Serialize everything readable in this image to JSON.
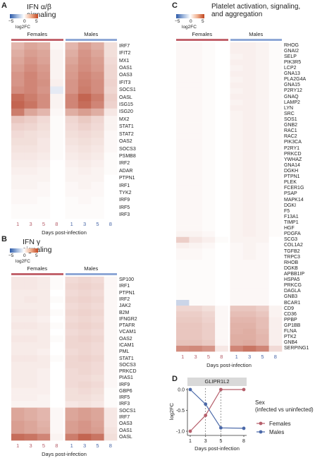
{
  "colors": {
    "female": "#b65f6b",
    "male": "#4a68a8",
    "female_bar": "#c2646d",
    "male_bar": "#8fa8d6"
  },
  "chart_data": [
    {
      "panel": "A",
      "type": "heatmap",
      "title": "IFN α/β signaling",
      "colorbar": {
        "label": "log2FC",
        "ticks": [
          "−5",
          "0",
          "5"
        ],
        "range": [
          -5,
          5
        ]
      },
      "groups": [
        "Females",
        "Males"
      ],
      "xlabel": "Days post-infection",
      "days": [
        "1",
        "3",
        "5",
        "8",
        "1",
        "3",
        "5",
        "8"
      ],
      "genes": [
        "IRF7",
        "IFIT2",
        "MX1",
        "OAS1",
        "OAS3",
        "IFIT3",
        "SOCS1",
        "OASL",
        "ISG15",
        "ISG20",
        "MX2",
        "STAT1",
        "STAT2",
        "OAS2",
        "SOCS3",
        "PSMB8",
        "IRF2",
        "ADAR",
        "PTPN1",
        "IRF1",
        "TYK2",
        "IRF9",
        "IRF5",
        "IRF3"
      ],
      "values": [
        [
          1.8,
          2.2,
          2.0,
          0.2,
          1.8,
          2.4,
          2.0,
          0.8
        ],
        [
          2.0,
          2.4,
          2.2,
          0.3,
          2.0,
          2.6,
          2.2,
          0.8
        ],
        [
          2.2,
          2.6,
          2.3,
          0.3,
          2.2,
          2.7,
          2.4,
          0.9
        ],
        [
          2.4,
          2.8,
          2.5,
          0.3,
          2.4,
          2.8,
          2.5,
          1.0
        ],
        [
          2.6,
          3.0,
          2.6,
          0.3,
          2.5,
          3.0,
          2.7,
          1.0
        ],
        [
          2.6,
          3.0,
          2.7,
          0.4,
          2.6,
          3.1,
          2.8,
          1.1
        ],
        [
          2.8,
          3.0,
          2.6,
          -0.6,
          2.6,
          3.2,
          2.8,
          1.0
        ],
        [
          3.6,
          3.2,
          2.8,
          0.3,
          3.0,
          3.8,
          3.2,
          1.2
        ],
        [
          3.8,
          3.4,
          2.8,
          0.3,
          3.0,
          3.6,
          3.0,
          1.1
        ],
        [
          3.2,
          2.2,
          1.8,
          0.2,
          2.0,
          2.4,
          2.0,
          0.6
        ],
        [
          1.4,
          1.2,
          0.9,
          0.1,
          1.0,
          1.3,
          1.0,
          0.3
        ],
        [
          1.1,
          1.0,
          0.8,
          0.1,
          0.9,
          1.1,
          0.9,
          0.3
        ],
        [
          0.9,
          0.8,
          0.7,
          0.1,
          0.8,
          0.9,
          0.8,
          0.2
        ],
        [
          0.8,
          0.8,
          0.6,
          0.1,
          0.7,
          0.8,
          0.7,
          0.2
        ],
        [
          0.7,
          0.7,
          0.6,
          0.1,
          0.6,
          0.7,
          0.6,
          0.2
        ],
        [
          0.6,
          0.6,
          0.5,
          0.1,
          0.5,
          0.6,
          0.5,
          0.1
        ],
        [
          0.5,
          0.5,
          0.4,
          0.0,
          0.4,
          0.5,
          0.4,
          0.1
        ],
        [
          0.4,
          0.4,
          0.3,
          0.0,
          0.3,
          0.4,
          0.3,
          0.1
        ],
        [
          0.3,
          0.3,
          0.3,
          0.0,
          0.3,
          0.3,
          0.3,
          0.0
        ],
        [
          0.3,
          0.3,
          0.2,
          0.0,
          0.2,
          0.3,
          0.2,
          0.0
        ],
        [
          0.2,
          0.2,
          0.2,
          0.0,
          0.2,
          0.2,
          0.2,
          0.0
        ],
        [
          0.2,
          0.2,
          0.1,
          0.0,
          0.1,
          0.2,
          0.1,
          0.0
        ],
        [
          0.1,
          0.1,
          0.1,
          0.0,
          0.1,
          0.1,
          0.1,
          0.0
        ],
        [
          0.1,
          0.1,
          0.1,
          0.0,
          0.1,
          0.1,
          0.1,
          0.0
        ]
      ]
    },
    {
      "panel": "B",
      "type": "heatmap",
      "title": "IFN γ signaling",
      "colorbar": {
        "label": "log2FC",
        "ticks": [
          "−5",
          "0",
          "5"
        ],
        "range": [
          -5,
          5
        ]
      },
      "groups": [
        "Females",
        "Males"
      ],
      "xlabel": "Days post-infection",
      "days": [
        "1",
        "3",
        "5",
        "8",
        "1",
        "3",
        "5",
        "8"
      ],
      "genes": [
        "SP100",
        "IRF1",
        "PTPN1",
        "IRF2",
        "JAK2",
        "B2M",
        "IFNGR2",
        "PTAFR",
        "VCAM1",
        "OAS2",
        "ICAM1",
        "PML",
        "STAT1",
        "SOCS3",
        "PRKCD",
        "PIAS1",
        "IRF9",
        "GBP6",
        "IRF5",
        "IRF3",
        "SOCS1",
        "IRF7",
        "OAS3",
        "OAS1",
        "OASL"
      ],
      "values": [
        [
          0.6,
          0.6,
          0.5,
          0.1,
          0.9,
          1.0,
          0.9,
          0.2
        ],
        [
          0.6,
          0.6,
          0.5,
          0.1,
          1.0,
          1.1,
          1.0,
          0.2
        ],
        [
          0.5,
          0.5,
          0.5,
          0.0,
          0.9,
          1.0,
          0.9,
          0.2
        ],
        [
          0.5,
          0.6,
          0.5,
          0.1,
          1.0,
          1.1,
          1.0,
          0.2
        ],
        [
          0.5,
          0.5,
          0.5,
          0.0,
          0.9,
          1.0,
          0.9,
          0.2
        ],
        [
          0.6,
          0.6,
          0.5,
          0.1,
          1.0,
          1.1,
          1.0,
          0.2
        ],
        [
          0.5,
          0.5,
          0.4,
          0.0,
          0.9,
          1.0,
          0.9,
          0.2
        ],
        [
          0.6,
          0.6,
          0.5,
          0.1,
          1.0,
          1.1,
          1.0,
          0.2
        ],
        [
          0.5,
          0.5,
          0.5,
          0.0,
          0.9,
          1.0,
          0.9,
          0.2
        ],
        [
          0.6,
          0.6,
          0.5,
          0.1,
          1.0,
          1.1,
          1.0,
          0.2
        ],
        [
          0.5,
          0.5,
          0.5,
          0.0,
          1.0,
          1.0,
          0.9,
          0.2
        ],
        [
          0.5,
          0.5,
          0.4,
          0.0,
          0.9,
          1.0,
          0.9,
          0.2
        ],
        [
          0.6,
          0.6,
          0.5,
          0.1,
          1.0,
          1.1,
          1.0,
          0.2
        ],
        [
          0.5,
          0.5,
          0.5,
          0.0,
          1.0,
          1.0,
          0.9,
          0.2
        ],
        [
          0.5,
          0.5,
          0.4,
          0.0,
          0.9,
          1.0,
          0.9,
          0.2
        ],
        [
          0.5,
          0.5,
          0.4,
          0.0,
          0.9,
          0.9,
          0.8,
          0.2
        ],
        [
          0.5,
          0.5,
          0.4,
          0.0,
          0.9,
          1.0,
          0.9,
          0.2
        ],
        [
          0.4,
          0.4,
          0.4,
          0.0,
          0.8,
          0.9,
          0.8,
          0.1
        ],
        [
          0.4,
          0.4,
          0.3,
          0.0,
          0.8,
          0.8,
          0.7,
          0.1
        ],
        [
          0.3,
          0.3,
          0.3,
          0.0,
          0.6,
          0.7,
          0.6,
          0.1
        ],
        [
          2.2,
          2.0,
          1.8,
          0.2,
          2.2,
          2.4,
          2.2,
          0.6
        ],
        [
          2.2,
          2.0,
          1.8,
          0.2,
          2.2,
          2.4,
          2.2,
          0.6
        ],
        [
          2.4,
          2.2,
          1.9,
          0.2,
          2.4,
          2.6,
          2.3,
          0.6
        ],
        [
          2.4,
          2.2,
          2.0,
          0.2,
          2.4,
          2.6,
          2.4,
          0.7
        ],
        [
          3.6,
          3.4,
          3.0,
          0.3,
          3.2,
          3.8,
          3.4,
          0.8
        ]
      ]
    },
    {
      "panel": "C",
      "type": "heatmap",
      "title": "Platelet activation, signaling,\nand aggregation",
      "colorbar": {
        "label": "log2FC",
        "ticks": [
          "−5",
          "0",
          "5"
        ],
        "range": [
          -5,
          5
        ]
      },
      "groups": [
        "Females",
        "Males"
      ],
      "xlabel": "Days post-infection",
      "days": [
        "1",
        "3",
        "5",
        "8",
        "1",
        "3",
        "5",
        "8"
      ],
      "genes": [
        "RHOG",
        "GNAI2",
        "SELP",
        "PIK3R5",
        "LCP2",
        "GNA13",
        "PLA2G4A",
        "GNA15",
        "P2RY12",
        "GNAQ",
        "LAMP2",
        "LYN",
        "SRC",
        "SOS1",
        "GNB2",
        "RAC1",
        "RAC2",
        "PIK3CA",
        "P2RY1",
        "PRKCD",
        "YWHAZ",
        "GNA14",
        "DGKH",
        "PTPN1",
        "PLEK",
        "FCER1G",
        "PSAP",
        "MAPK14",
        "DGKI",
        "F5",
        "F13A1",
        "TIMP1",
        "HGF",
        "PDGFA",
        "SCG3",
        "COL1A2",
        "TGFB2",
        "TRPC3",
        "RHOB",
        "DGKB",
        "APBB1IP",
        "HSPA5",
        "PRKCG",
        "DAGLA",
        "GNB3",
        "BCAR1",
        "CD9",
        "CD36",
        "PPBP",
        "GP1BB",
        "FLNA",
        "PTK2",
        "GNB4",
        "SERPING1"
      ],
      "values": [
        [
          0.2,
          0.2,
          0.1,
          0.0,
          0.4,
          0.4,
          0.3,
          0.1
        ],
        [
          0.2,
          0.2,
          0.1,
          0.0,
          0.4,
          0.4,
          0.3,
          0.1
        ],
        [
          0.2,
          0.2,
          0.1,
          0.0,
          0.3,
          0.4,
          0.3,
          0.1
        ],
        [
          0.2,
          0.2,
          0.1,
          0.0,
          0.4,
          0.4,
          0.3,
          0.1
        ],
        [
          0.2,
          0.2,
          0.1,
          0.0,
          0.3,
          0.4,
          0.3,
          0.1
        ],
        [
          0.2,
          0.2,
          0.1,
          0.0,
          0.4,
          0.4,
          0.3,
          0.1
        ],
        [
          0.2,
          0.2,
          0.1,
          0.0,
          0.3,
          0.4,
          0.3,
          0.1
        ],
        [
          0.2,
          0.2,
          0.1,
          0.0,
          0.4,
          0.4,
          0.3,
          0.1
        ],
        [
          0.2,
          0.2,
          0.1,
          0.0,
          0.3,
          0.4,
          0.3,
          0.1
        ],
        [
          0.2,
          0.2,
          0.1,
          0.0,
          0.4,
          0.4,
          0.3,
          0.1
        ],
        [
          0.2,
          0.2,
          0.1,
          0.0,
          0.3,
          0.4,
          0.3,
          0.1
        ],
        [
          0.2,
          0.2,
          0.1,
          0.0,
          0.4,
          0.4,
          0.3,
          0.1
        ],
        [
          0.2,
          0.2,
          0.1,
          0.0,
          0.3,
          0.4,
          0.3,
          0.1
        ],
        [
          0.2,
          0.2,
          0.1,
          0.0,
          0.3,
          0.4,
          0.3,
          0.1
        ],
        [
          0.2,
          0.2,
          0.1,
          0.0,
          0.3,
          0.4,
          0.3,
          0.1
        ],
        [
          0.2,
          0.2,
          0.1,
          0.0,
          0.3,
          0.4,
          0.3,
          0.1
        ],
        [
          0.2,
          0.2,
          0.1,
          0.0,
          0.3,
          0.4,
          0.3,
          0.1
        ],
        [
          0.2,
          0.2,
          0.1,
          0.0,
          0.3,
          0.4,
          0.3,
          0.1
        ],
        [
          0.2,
          0.2,
          0.1,
          0.0,
          0.3,
          0.4,
          0.3,
          0.1
        ],
        [
          0.2,
          0.2,
          0.1,
          0.0,
          0.3,
          0.4,
          0.3,
          0.1
        ],
        [
          0.2,
          0.2,
          0.1,
          0.0,
          0.3,
          0.4,
          0.3,
          0.1
        ],
        [
          0.2,
          0.2,
          0.1,
          0.0,
          0.3,
          0.4,
          0.3,
          0.1
        ],
        [
          0.2,
          0.2,
          0.1,
          0.0,
          0.3,
          0.4,
          0.3,
          0.1
        ],
        [
          0.2,
          0.2,
          0.1,
          0.0,
          0.3,
          0.4,
          0.3,
          0.1
        ],
        [
          0.2,
          0.2,
          0.1,
          0.0,
          0.3,
          0.4,
          0.3,
          0.1
        ],
        [
          0.2,
          0.2,
          0.1,
          0.0,
          0.3,
          0.4,
          0.3,
          0.1
        ],
        [
          0.2,
          0.2,
          0.1,
          0.0,
          0.3,
          0.4,
          0.3,
          0.1
        ],
        [
          0.2,
          0.2,
          0.1,
          0.0,
          0.3,
          0.4,
          0.3,
          0.1
        ],
        [
          0.2,
          0.2,
          0.1,
          0.0,
          0.3,
          0.4,
          0.3,
          0.1
        ],
        [
          0.2,
          0.2,
          0.1,
          0.0,
          0.3,
          0.4,
          0.3,
          0.1
        ],
        [
          0.2,
          0.2,
          0.1,
          0.0,
          0.3,
          0.4,
          0.3,
          0.1
        ],
        [
          0.2,
          0.2,
          0.1,
          0.0,
          0.3,
          0.4,
          0.3,
          0.1
        ],
        [
          0.2,
          0.2,
          0.1,
          0.0,
          0.3,
          0.4,
          0.3,
          0.1
        ],
        [
          0.3,
          0.3,
          0.2,
          0.0,
          0.3,
          0.4,
          0.3,
          0.1
        ],
        [
          1.2,
          0.6,
          0.4,
          0.1,
          0.3,
          0.3,
          0.3,
          0.0
        ],
        [
          0.4,
          0.3,
          0.2,
          0.0,
          0.2,
          0.3,
          0.2,
          0.0
        ],
        [
          0.2,
          0.2,
          0.1,
          0.0,
          0.2,
          0.3,
          0.2,
          0.0
        ],
        [
          0.2,
          0.2,
          0.1,
          0.0,
          0.2,
          0.3,
          0.2,
          0.0
        ],
        [
          0.1,
          0.1,
          0.1,
          0.0,
          0.2,
          0.2,
          0.2,
          0.0
        ],
        [
          0.1,
          0.1,
          0.1,
          0.0,
          0.2,
          0.2,
          0.2,
          0.0
        ],
        [
          0.1,
          0.1,
          0.1,
          0.0,
          0.2,
          0.2,
          0.2,
          0.0
        ],
        [
          0.1,
          0.1,
          0.1,
          0.0,
          0.2,
          0.2,
          0.2,
          0.0
        ],
        [
          0.1,
          0.1,
          0.1,
          0.0,
          0.2,
          0.2,
          0.2,
          0.0
        ],
        [
          0.1,
          0.1,
          0.1,
          0.0,
          0.2,
          0.2,
          0.2,
          0.0
        ],
        [
          0.1,
          0.1,
          0.1,
          0.0,
          0.2,
          0.2,
          0.2,
          0.0
        ],
        [
          -1.2,
          0.1,
          0.1,
          0.0,
          0.2,
          0.2,
          0.2,
          0.0
        ],
        [
          1.0,
          1.0,
          0.8,
          0.2,
          1.4,
          1.4,
          1.2,
          0.3
        ],
        [
          1.2,
          1.2,
          1.0,
          0.2,
          1.6,
          1.6,
          1.4,
          0.3
        ],
        [
          1.3,
          1.3,
          1.1,
          0.2,
          1.8,
          1.8,
          1.6,
          0.4
        ],
        [
          1.4,
          1.4,
          1.2,
          0.2,
          1.9,
          1.9,
          1.6,
          0.4
        ],
        [
          1.4,
          1.4,
          1.2,
          0.2,
          1.9,
          2.0,
          1.7,
          0.4
        ],
        [
          1.4,
          1.4,
          1.2,
          0.2,
          2.0,
          2.0,
          1.8,
          0.4
        ],
        [
          1.5,
          1.5,
          1.3,
          0.2,
          2.0,
          2.1,
          1.8,
          0.4
        ],
        [
          2.8,
          2.9,
          2.6,
          0.6,
          3.0,
          3.4,
          3.0,
          0.9
        ]
      ]
    },
    {
      "panel": "D",
      "type": "line",
      "title": "GLIPR1L2",
      "xlabel": "Days post-infection",
      "ylabel": "log2FC",
      "x": [
        1,
        3,
        5,
        8
      ],
      "xticks": [
        "1",
        "3",
        "5",
        "8"
      ],
      "yticks": [
        "0.0",
        "-0.5",
        "-1.0"
      ],
      "ylim": [
        -1.05,
        0.0
      ],
      "legend_title": "Sex\n(infected vs uninfected)",
      "series": [
        {
          "name": "Females",
          "values": [
            -1.0,
            -0.62,
            0.0,
            0.0
          ]
        },
        {
          "name": "Males",
          "values": [
            0.0,
            -0.35,
            -0.92,
            -0.93
          ]
        }
      ]
    }
  ]
}
